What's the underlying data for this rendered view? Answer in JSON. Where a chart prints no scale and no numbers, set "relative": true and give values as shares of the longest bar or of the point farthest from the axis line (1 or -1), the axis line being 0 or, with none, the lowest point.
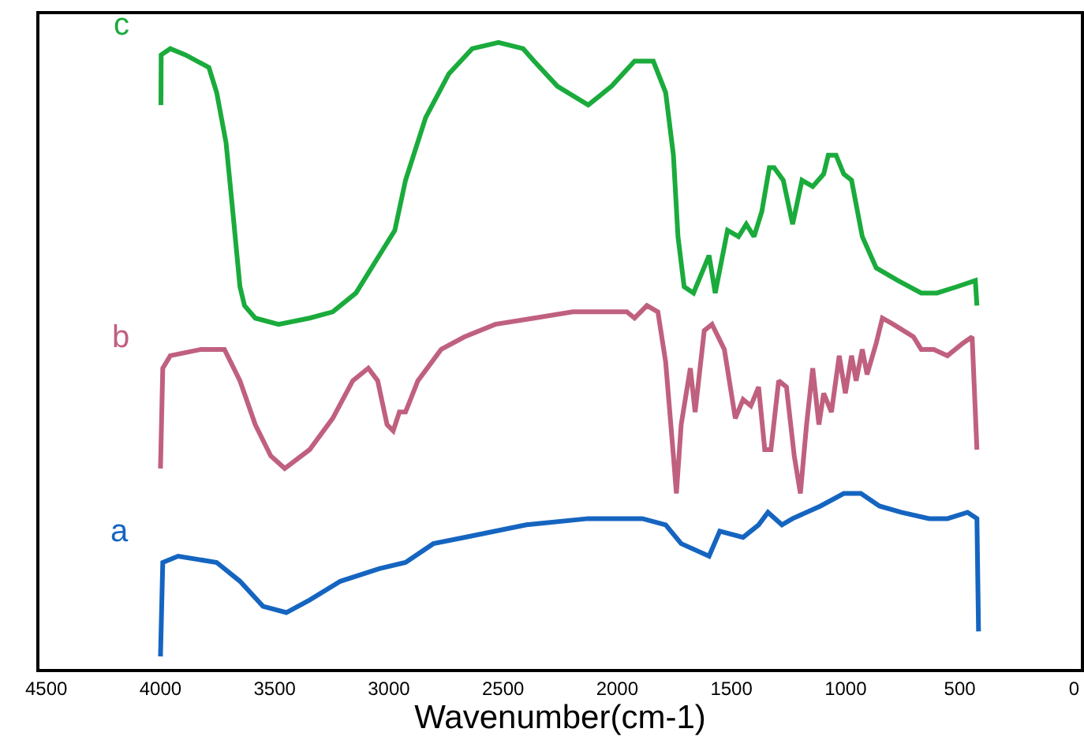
{
  "chart_data": {
    "type": "line",
    "relative": true,
    "xlabel": "Wavenumber(cm-1)",
    "xlim": [
      4530,
      -30
    ],
    "xticks": [
      4500,
      4000,
      3500,
      3000,
      2500,
      2000,
      1500,
      1000,
      500,
      0
    ],
    "tick_labels": "x",
    "legend": false,
    "marker": "none",
    "line_style": "solid",
    "series": [
      {
        "name": "c",
        "color": "#1aab3c",
        "x": [
          3998,
          3997,
          3957,
          3890,
          3788,
          3754,
          3713,
          3686,
          3652,
          3632,
          3585,
          3483,
          3347,
          3246,
          3144,
          3042,
          2974,
          2927,
          2839,
          2737,
          2635,
          2520,
          2412,
          2364,
          2262,
          2127,
          2025,
          1924,
          1842,
          1788,
          1754,
          1734,
          1707,
          1666,
          1598,
          1571,
          1517,
          1469,
          1435,
          1401,
          1367,
          1334,
          1313,
          1273,
          1232,
          1191,
          1144,
          1096,
          1076,
          1042,
          1008,
          974,
          927,
          866,
          771,
          669,
          600,
          513,
          432,
          425
        ],
        "values": [
          0.9,
          0.98,
          0.99,
          0.98,
          0.96,
          0.92,
          0.84,
          0.74,
          0.61,
          0.58,
          0.56,
          0.55,
          0.56,
          0.57,
          0.6,
          0.66,
          0.7,
          0.78,
          0.88,
          0.95,
          0.99,
          1.0,
          0.99,
          0.97,
          0.93,
          0.9,
          0.93,
          0.97,
          0.97,
          0.92,
          0.82,
          0.69,
          0.61,
          0.6,
          0.66,
          0.6,
          0.7,
          0.69,
          0.71,
          0.69,
          0.73,
          0.8,
          0.8,
          0.78,
          0.71,
          0.78,
          0.77,
          0.79,
          0.82,
          0.82,
          0.79,
          0.78,
          0.69,
          0.64,
          0.62,
          0.6,
          0.6,
          0.61,
          0.62,
          0.58
        ]
      },
      {
        "name": "b",
        "color": "#c0607f",
        "x": [
          4000,
          3990,
          3957,
          3822,
          3720,
          3652,
          3585,
          3517,
          3456,
          3347,
          3246,
          3158,
          3090,
          3049,
          3008,
          2981,
          2954,
          2927,
          2873,
          2771,
          2669,
          2534,
          2364,
          2195,
          2025,
          1958,
          1924,
          1870,
          1822,
          1788,
          1754,
          1741,
          1720,
          1680,
          1659,
          1619,
          1585,
          1531,
          1483,
          1449,
          1415,
          1381,
          1354,
          1327,
          1293,
          1259,
          1225,
          1198,
          1171,
          1144,
          1117,
          1096,
          1062,
          1028,
          1001,
          974,
          954,
          927,
          906,
          866,
          839,
          791,
          703,
          669,
          614,
          554,
          486,
          446,
          425
        ],
        "values": [
          0.32,
          0.48,
          0.5,
          0.51,
          0.51,
          0.46,
          0.39,
          0.34,
          0.32,
          0.35,
          0.4,
          0.46,
          0.48,
          0.46,
          0.39,
          0.38,
          0.41,
          0.41,
          0.46,
          0.51,
          0.53,
          0.55,
          0.56,
          0.57,
          0.57,
          0.57,
          0.56,
          0.58,
          0.57,
          0.49,
          0.34,
          0.28,
          0.39,
          0.48,
          0.41,
          0.54,
          0.55,
          0.51,
          0.4,
          0.43,
          0.42,
          0.45,
          0.35,
          0.35,
          0.46,
          0.45,
          0.34,
          0.28,
          0.39,
          0.48,
          0.39,
          0.44,
          0.41,
          0.5,
          0.44,
          0.5,
          0.46,
          0.51,
          0.47,
          0.52,
          0.56,
          0.55,
          0.53,
          0.51,
          0.51,
          0.5,
          0.52,
          0.53,
          0.35
        ]
      },
      {
        "name": "a",
        "color": "#1565c0",
        "x": [
          4000,
          3990,
          3923,
          3754,
          3652,
          3551,
          3449,
          3347,
          3212,
          3042,
          2927,
          2805,
          2669,
          2398,
          2127,
          1890,
          1788,
          1720,
          1598,
          1551,
          1449,
          1381,
          1340,
          1279,
          1232,
          1110,
          1008,
          933,
          852,
          757,
          634,
          554,
          466,
          425,
          418
        ],
        "values": [
          0.02,
          0.17,
          0.18,
          0.17,
          0.14,
          0.1,
          0.09,
          0.11,
          0.14,
          0.16,
          0.17,
          0.2,
          0.21,
          0.23,
          0.24,
          0.24,
          0.23,
          0.2,
          0.18,
          0.22,
          0.21,
          0.23,
          0.25,
          0.23,
          0.24,
          0.26,
          0.28,
          0.28,
          0.26,
          0.25,
          0.24,
          0.24,
          0.25,
          0.24,
          0.06
        ]
      }
    ]
  }
}
